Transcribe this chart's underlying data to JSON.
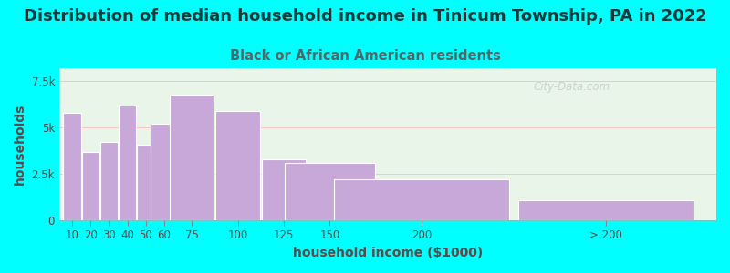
{
  "title": "Distribution of median household income in Tinicum Township, PA in 2022",
  "subtitle": "Black or African American residents",
  "xlabel": "household income ($1000)",
  "ylabel": "households",
  "background_color": "#00FFFF",
  "plot_bg_left": "#e8f5e8",
  "plot_bg_right": "#f8fff8",
  "bar_color": "#c8a8d8",
  "bar_edge_color": "#ffffff",
  "title_color": "#1a3a3a",
  "subtitle_color": "#4a6a6a",
  "axis_label_color": "#5a4a4a",
  "tick_color": "#5a4a4a",
  "ytick_labels": [
    "0",
    "2.5k",
    "5k",
    "7.5k"
  ],
  "xtick_labels": [
    "10",
    "20",
    "30",
    "40",
    "50",
    "60",
    "75",
    "100",
    "125",
    "150",
    "200",
    "> 200"
  ],
  "bar_heights": [
    5800,
    3700,
    4200,
    6200,
    4100,
    5200,
    6800,
    5900,
    3300,
    3100,
    2200,
    1100
  ],
  "bar_centers": [
    10,
    20,
    30,
    40,
    50,
    60,
    75,
    100,
    125,
    150,
    200,
    300
  ],
  "bar_widths": [
    9.5,
    9.5,
    9.5,
    9.5,
    9.5,
    14.5,
    24,
    24,
    24,
    49,
    95,
    95
  ],
  "bar_tick_positions": [
    10,
    20,
    30,
    40,
    50,
    60,
    75,
    100,
    125,
    150,
    200,
    300
  ],
  "ylim": [
    0,
    8200
  ],
  "yticks": [
    0,
    2500,
    5000,
    7500
  ],
  "xlim": [
    3,
    360
  ],
  "watermark": "City-Data.com",
  "title_fontsize": 13,
  "subtitle_fontsize": 10.5,
  "axis_label_fontsize": 10,
  "tick_fontsize": 8.5
}
